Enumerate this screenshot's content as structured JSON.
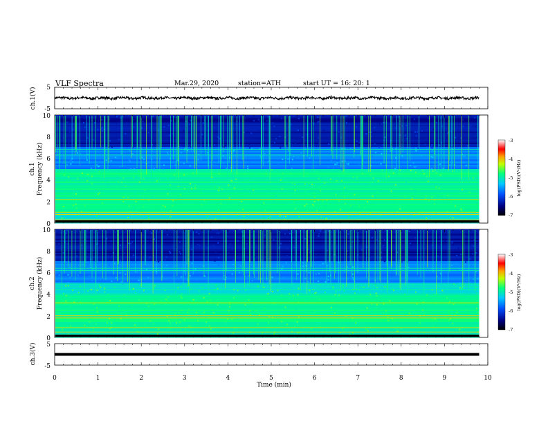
{
  "header": {
    "title": "VLF  Spectra",
    "date": "Mar.29, 2020",
    "station": "station=ATH",
    "start_ut": "start  UT  =    16: 20: 1"
  },
  "axes": {
    "ch1_wave_ylabel": "ch.1(V)",
    "ch1_spec_ylabel_a": "ch.1",
    "ch1_spec_ylabel_b": "Frequency  (kHz)",
    "ch2_spec_ylabel_a": "ch.2",
    "ch2_spec_ylabel_b": "Frequency  (kHz)",
    "ch3_wave_ylabel": "ch.3(V)",
    "xlabel": "Time  (min)",
    "cbar_label": "log(PSD)(V²/Hz)"
  },
  "chart_data": [
    {
      "type": "line",
      "panel": "ch.1 waveform",
      "ylabel": "ch.1(V)",
      "ylim": [
        -5,
        5
      ],
      "yticks": [
        "5",
        "-5"
      ],
      "xlim": [
        0,
        10
      ],
      "series": [
        {
          "x_start": 0,
          "x_end": 9.8,
          "level": 0,
          "amplitude": 0.6
        }
      ]
    },
    {
      "type": "heatmap",
      "panel": "ch.1 spectrogram",
      "ylabel": "Frequency  (kHz)",
      "ylim": [
        0,
        10
      ],
      "yticks": [
        "0",
        "2",
        "4",
        "6",
        "8",
        "10"
      ],
      "xlim": [
        0,
        10
      ],
      "data_x_end": 9.8,
      "colorbar": {
        "label": "log(PSD)(V²/Hz)",
        "range": [
          -7,
          -3
        ],
        "ticks": [
          "-3",
          "-4",
          "-5",
          "-6",
          "-7"
        ]
      },
      "features": {
        "lines_khz": [
          0.3,
          0.8,
          1.0,
          2.2
        ],
        "bright_band_khz": [
          1.0,
          5.0
        ],
        "bands_khz": [
          6.3,
          6.8
        ]
      }
    },
    {
      "type": "heatmap",
      "panel": "ch.2 spectrogram",
      "ylabel": "Frequency  (kHz)",
      "ylim": [
        0,
        10
      ],
      "yticks": [
        "0",
        "2",
        "4",
        "6",
        "8",
        "10"
      ],
      "xlim": [
        0,
        10
      ],
      "data_x_end": 9.8,
      "colorbar": {
        "label": "log(PSD)(V²/Hz)",
        "range": [
          -7,
          -3
        ],
        "ticks": [
          "-3",
          "-4",
          "-5",
          "-6",
          "-7"
        ]
      },
      "features": {
        "lines_khz": [
          0.5,
          0.9,
          1.8,
          2.0,
          3.2
        ],
        "bright_band_khz": [
          0.5,
          4.0
        ],
        "bands_khz": [
          6.2,
          6.4
        ]
      }
    },
    {
      "type": "line",
      "panel": "ch.3 waveform",
      "ylabel": "ch.3(V)",
      "ylim": [
        -5,
        5
      ],
      "yticks": [
        "5",
        "-5"
      ],
      "xlim": [
        0,
        10
      ],
      "series": [
        {
          "x_start": 0,
          "x_end": 9.8,
          "level": 0,
          "amplitude": 0.15
        }
      ]
    },
    {
      "type": "axis",
      "panel": "time axis",
      "xlabel": "Time  (min)",
      "xlim": [
        0,
        10
      ],
      "xticks": [
        "0",
        "1",
        "2",
        "3",
        "4",
        "5",
        "6",
        "7",
        "8",
        "9",
        "10"
      ]
    }
  ]
}
